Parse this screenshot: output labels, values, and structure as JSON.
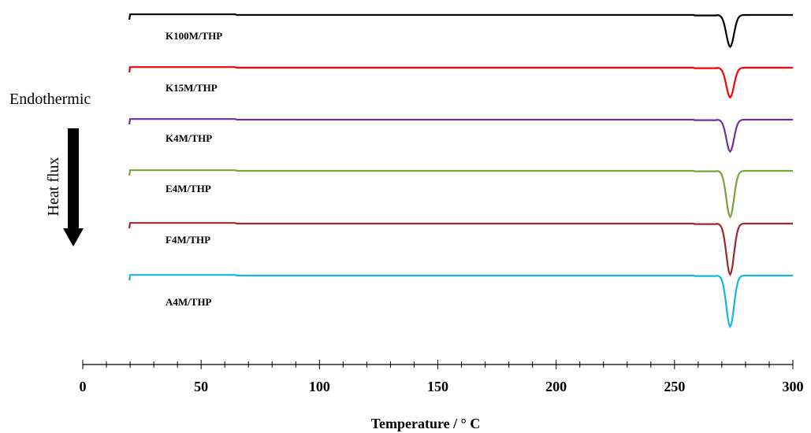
{
  "chart_data": {
    "type": "line",
    "title": "",
    "xlabel": "Temperature  / ° C",
    "ylabel": "",
    "xlim": [
      0,
      300
    ],
    "xticks": [
      "0",
      "50",
      "100",
      "150",
      "200",
      "250",
      "300"
    ],
    "grid": false,
    "annotations": {
      "endothermic": "Endothermic",
      "heat_flux": "Heat flux"
    },
    "series": [
      {
        "name": "K100M/THP",
        "color": "#000000",
        "peak_x": 273.5,
        "peak_depth": 0.45
      },
      {
        "name": "K15M/THP",
        "color": "#ff0000",
        "peak_x": 273.5,
        "peak_depth": 0.42
      },
      {
        "name": "K4M/THP",
        "color": "#7030a0",
        "peak_x": 273.5,
        "peak_depth": 0.45
      },
      {
        "name": "E4M/THP",
        "color": "#77a33a",
        "peak_x": 273.5,
        "peak_depth": 0.65
      },
      {
        "name": "F4M/THP",
        "color": "#a0282a",
        "peak_x": 273.5,
        "peak_depth": 0.72
      },
      {
        "name": "A4M/THP",
        "color": "#12b5e6",
        "peak_x": 273.5,
        "peak_depth": 0.72
      }
    ]
  }
}
